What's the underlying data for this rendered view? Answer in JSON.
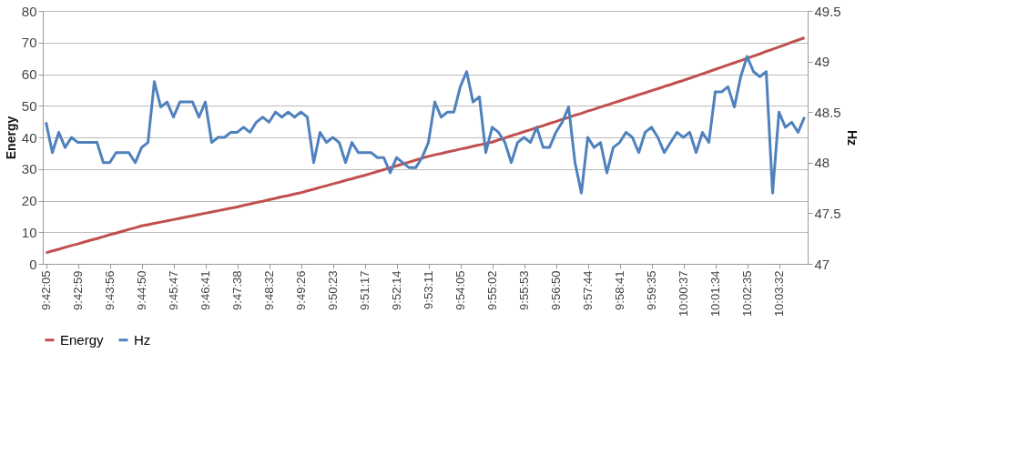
{
  "chart_data": {
    "type": "line",
    "ylabel": "Energy",
    "y2label": "Hz",
    "categories": [
      "9:42:05",
      null,
      null,
      null,
      null,
      "9:42:59",
      null,
      null,
      null,
      null,
      "9:43:56",
      null,
      null,
      null,
      null,
      "9:44:50",
      null,
      null,
      null,
      null,
      "9:45:47",
      null,
      null,
      null,
      null,
      "9:46:41",
      null,
      null,
      null,
      null,
      "9:47:38",
      null,
      null,
      null,
      null,
      "9:48:32",
      null,
      null,
      null,
      null,
      "9:49:26",
      null,
      null,
      null,
      null,
      "9:50:23",
      null,
      null,
      null,
      null,
      "9:51:17",
      null,
      null,
      null,
      null,
      "9:52:14",
      null,
      null,
      null,
      null,
      "9:53:11",
      null,
      null,
      null,
      null,
      "9:54:05",
      null,
      null,
      null,
      null,
      "9:55:02",
      null,
      null,
      null,
      null,
      "9:55:53",
      null,
      null,
      null,
      null,
      "9:56:50",
      null,
      null,
      null,
      null,
      "9:57:44",
      null,
      null,
      null,
      null,
      "9:58:41",
      null,
      null,
      null,
      null,
      "9:59:35",
      null,
      null,
      null,
      null,
      "10:00:37",
      null,
      null,
      null,
      null,
      "10:01:34",
      null,
      null,
      null,
      null,
      "10:02:35",
      null,
      null,
      null,
      null,
      "10:03:32",
      null,
      null,
      null,
      null
    ],
    "series": [
      {
        "name": "Energy",
        "color": "#c0504d",
        "values": [
          3.5,
          4.1,
          4.6,
          5.2,
          5.8,
          6.3,
          6.9,
          7.5,
          8.0,
          8.6,
          9.2,
          9.7,
          10.3,
          10.9,
          11.4,
          12.0,
          12.4,
          12.8,
          13.2,
          13.6,
          14.0,
          14.4,
          14.8,
          15.2,
          15.6,
          16.0,
          16.4,
          16.8,
          17.2,
          17.6,
          18.0,
          18.5,
          18.9,
          19.4,
          19.8,
          20.3,
          20.7,
          21.2,
          21.6,
          22.1,
          22.5,
          23.1,
          23.6,
          24.2,
          24.7,
          25.3,
          25.8,
          26.4,
          26.9,
          27.5,
          28.0,
          28.6,
          29.2,
          29.8,
          30.4,
          31.0,
          31.6,
          32.2,
          32.8,
          33.4,
          34.0,
          34.5,
          34.9,
          35.4,
          35.8,
          36.3,
          36.7,
          37.2,
          37.6,
          38.1,
          38.5,
          39.2,
          39.8,
          40.5,
          41.1,
          41.8,
          42.4,
          43.1,
          43.7,
          44.4,
          45.0,
          45.7,
          46.3,
          47.0,
          47.6,
          48.3,
          48.9,
          49.6,
          50.2,
          50.9,
          51.5,
          52.2,
          52.8,
          53.5,
          54.1,
          54.8,
          55.4,
          56.1,
          56.7,
          57.4,
          58.0,
          58.7,
          59.4,
          60.1,
          60.8,
          61.5,
          62.2,
          62.9,
          63.6,
          64.3,
          65.0,
          65.7,
          66.4,
          67.2,
          67.9,
          68.6,
          69.3,
          70.1,
          70.8,
          71.5
        ]
      },
      {
        "name": "Hz",
        "color": "#4f81bd",
        "axis": "y2",
        "values": [
          48.4,
          48.1,
          48.3,
          48.15,
          48.25,
          48.2,
          48.2,
          48.2,
          48.2,
          48.0,
          48.0,
          48.1,
          48.1,
          48.1,
          48.0,
          48.15,
          48.2,
          48.8,
          48.55,
          48.6,
          48.45,
          48.6,
          48.6,
          48.6,
          48.45,
          48.6,
          48.2,
          48.25,
          48.25,
          48.3,
          48.3,
          48.35,
          48.3,
          48.4,
          48.45,
          48.4,
          48.5,
          48.45,
          48.5,
          48.45,
          48.5,
          48.45,
          48.0,
          48.3,
          48.2,
          48.25,
          48.2,
          48.0,
          48.2,
          48.1,
          48.1,
          48.1,
          48.05,
          48.05,
          47.9,
          48.05,
          48.0,
          47.95,
          47.95,
          48.05,
          48.2,
          48.6,
          48.45,
          48.5,
          48.5,
          48.75,
          48.9,
          48.6,
          48.65,
          48.1,
          48.35,
          48.3,
          48.2,
          48.0,
          48.2,
          48.25,
          48.2,
          48.35,
          48.15,
          48.15,
          48.3,
          48.4,
          48.55,
          48.0,
          47.7,
          48.25,
          48.15,
          48.2,
          47.9,
          48.15,
          48.2,
          48.3,
          48.25,
          48.1,
          48.3,
          48.35,
          48.25,
          48.1,
          48.2,
          48.3,
          48.25,
          48.3,
          48.1,
          48.3,
          48.2,
          48.7,
          48.7,
          48.75,
          48.55,
          48.85,
          49.05,
          48.9,
          48.85,
          48.9,
          47.7,
          48.5,
          48.35,
          48.4,
          48.3,
          48.45
        ]
      }
    ],
    "ylim": [
      0,
      80
    ],
    "yticks": [
      0,
      10,
      20,
      30,
      40,
      50,
      60,
      70,
      80
    ],
    "y2lim": [
      47,
      49.5
    ],
    "y2ticks": [
      47,
      47.5,
      48,
      48.5,
      49,
      49.5
    ],
    "grid": "y",
    "legend": "bottom"
  }
}
